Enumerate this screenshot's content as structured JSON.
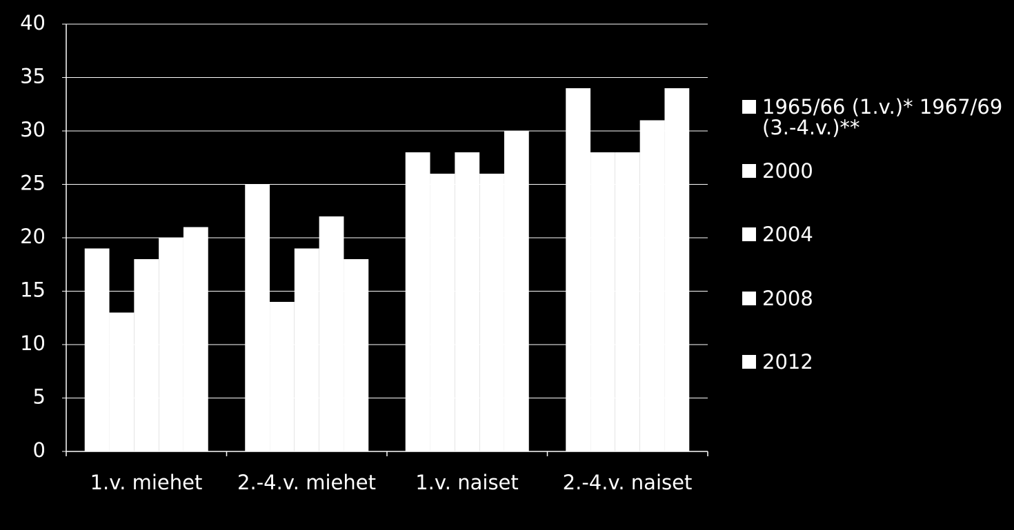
{
  "chart_data": {
    "type": "bar",
    "categories": [
      "1.v. miehet",
      "2.-4.v. miehet",
      "1.v. naiset",
      "2.-4.v. naiset"
    ],
    "series": [
      {
        "name": "1965/66 (1.v.)* 1967/69 (3.-4.v.)**",
        "color": "#ffffff",
        "values": [
          19,
          25,
          28,
          34
        ]
      },
      {
        "name": "2000",
        "color": "#ffffff",
        "values": [
          13,
          14,
          26,
          28
        ]
      },
      {
        "name": "2004",
        "color": "#ffffff",
        "values": [
          18,
          19,
          28,
          28
        ]
      },
      {
        "name": "2008",
        "color": "#ffffff",
        "values": [
          20,
          22,
          26,
          31
        ]
      },
      {
        "name": "2012",
        "color": "#ffffff",
        "values": [
          21,
          18,
          30,
          34
        ]
      }
    ],
    "ylim": [
      0,
      40
    ],
    "yticks": [
      0,
      5,
      10,
      15,
      20,
      25,
      30,
      35,
      40
    ],
    "grid": true,
    "legend": "right"
  }
}
